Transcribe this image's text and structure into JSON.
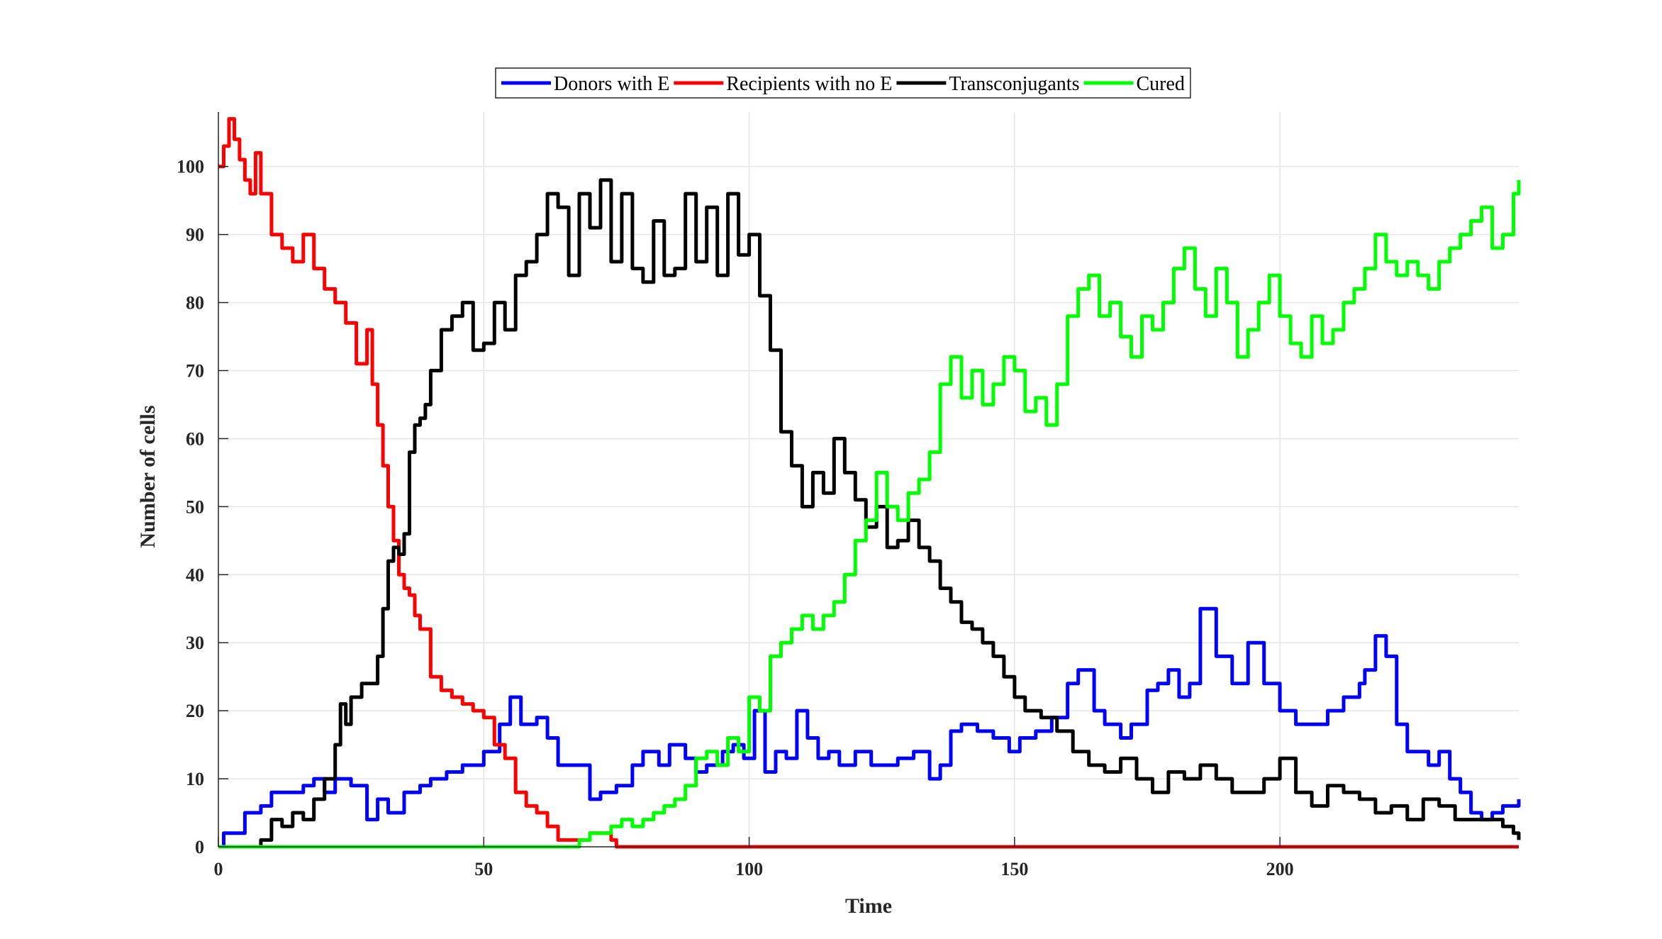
{
  "chart_data": {
    "type": "line",
    "title": "",
    "xlabel": "Time",
    "ylabel": "Number of cells",
    "xlim": [
      0,
      245
    ],
    "ylim": [
      0,
      108
    ],
    "xticks": [
      0,
      50,
      100,
      150,
      200
    ],
    "yticks": [
      0,
      10,
      20,
      30,
      40,
      50,
      60,
      70,
      80,
      90,
      100
    ],
    "grid": true,
    "legend": "top-center, horizontal",
    "series": [
      {
        "name": "Donors with E",
        "color": "#0000ff",
        "x": [
          0,
          1,
          2,
          5,
          8,
          10,
          13,
          16,
          18,
          20,
          22,
          25,
          28,
          30,
          32,
          35,
          38,
          40,
          43,
          46,
          48,
          50,
          53,
          55,
          57,
          60,
          62,
          64,
          67,
          70,
          72,
          75,
          78,
          80,
          83,
          85,
          88,
          90,
          92,
          95,
          97,
          99,
          101,
          103,
          105,
          107,
          109,
          111,
          113,
          115,
          117,
          120,
          123,
          125,
          128,
          131,
          134,
          136,
          138,
          140,
          143,
          146,
          149,
          151,
          154,
          157,
          160,
          162,
          165,
          167,
          170,
          172,
          175,
          177,
          179,
          181,
          183,
          185,
          188,
          191,
          194,
          197,
          200,
          203,
          206,
          209,
          212,
          215,
          216,
          218,
          220,
          222,
          224,
          226,
          228,
          230,
          232,
          234,
          236,
          238,
          240,
          242,
          245
        ],
        "y": [
          0,
          2,
          2,
          5,
          6,
          8,
          8,
          9,
          10,
          8,
          10,
          9,
          4,
          7,
          5,
          8,
          9,
          10,
          11,
          12,
          12,
          14,
          18,
          22,
          18,
          19,
          16,
          12,
          12,
          7,
          8,
          9,
          12,
          14,
          12,
          15,
          13,
          11,
          12,
          14,
          15,
          13,
          20,
          11,
          14,
          13,
          20,
          16,
          13,
          14,
          12,
          14,
          12,
          12,
          13,
          14,
          10,
          12,
          17,
          18,
          17,
          16,
          14,
          16,
          17,
          19,
          24,
          26,
          20,
          18,
          16,
          18,
          23,
          24,
          26,
          22,
          24,
          35,
          28,
          24,
          30,
          24,
          20,
          18,
          18,
          20,
          22,
          24,
          26,
          31,
          28,
          18,
          14,
          14,
          12,
          14,
          10,
          8,
          5,
          4,
          5,
          6,
          7
        ]
      },
      {
        "name": "Recipients with no E",
        "color": "#ff0000",
        "x": [
          0,
          1,
          2,
          3,
          4,
          5,
          6,
          7,
          8,
          10,
          12,
          14,
          16,
          18,
          20,
          22,
          24,
          26,
          28,
          29,
          30,
          31,
          32,
          33,
          34,
          35,
          36,
          37,
          38,
          40,
          42,
          44,
          46,
          48,
          50,
          52,
          54,
          56,
          58,
          60,
          62,
          64,
          66,
          68,
          70,
          72,
          73,
          74,
          75,
          76,
          245
        ],
        "y": [
          100,
          103,
          107,
          104,
          101,
          98,
          96,
          102,
          96,
          90,
          88,
          86,
          90,
          85,
          82,
          80,
          77,
          71,
          76,
          68,
          62,
          56,
          50,
          45,
          40,
          38,
          37,
          34,
          32,
          25,
          23,
          22,
          21,
          20,
          19,
          15,
          13,
          8,
          6,
          5,
          3,
          1,
          1,
          1,
          2,
          2,
          2,
          1,
          0,
          0,
          0
        ]
      },
      {
        "name": "Transconjugants",
        "color": "#000000",
        "x": [
          6,
          8,
          10,
          12,
          14,
          16,
          18,
          20,
          22,
          23,
          24,
          25,
          27,
          29,
          30,
          31,
          32,
          33,
          34,
          35,
          36,
          37,
          38,
          39,
          40,
          42,
          44,
          46,
          48,
          50,
          52,
          54,
          56,
          58,
          60,
          62,
          64,
          66,
          68,
          70,
          72,
          74,
          76,
          78,
          80,
          82,
          84,
          86,
          88,
          90,
          92,
          94,
          96,
          98,
          100,
          102,
          104,
          106,
          108,
          110,
          112,
          114,
          116,
          118,
          120,
          122,
          124,
          126,
          128,
          130,
          132,
          134,
          136,
          138,
          140,
          142,
          144,
          146,
          148,
          150,
          152,
          155,
          158,
          161,
          164,
          167,
          170,
          173,
          176,
          179,
          182,
          185,
          188,
          191,
          194,
          197,
          200,
          203,
          206,
          209,
          212,
          215,
          218,
          221,
          224,
          227,
          230,
          233,
          236,
          239,
          242,
          244,
          245
        ],
        "y": [
          0,
          1,
          4,
          3,
          5,
          4,
          7,
          10,
          15,
          21,
          18,
          22,
          24,
          24,
          28,
          35,
          42,
          44,
          43,
          46,
          58,
          62,
          63,
          65,
          70,
          76,
          78,
          80,
          73,
          74,
          80,
          76,
          84,
          86,
          90,
          96,
          94,
          84,
          96,
          91,
          98,
          86,
          96,
          85,
          83,
          92,
          84,
          85,
          96,
          86,
          94,
          84,
          96,
          87,
          90,
          81,
          73,
          61,
          56,
          50,
          55,
          52,
          60,
          55,
          51,
          47,
          50,
          44,
          45,
          48,
          44,
          42,
          38,
          36,
          33,
          32,
          30,
          28,
          25,
          22,
          20,
          19,
          17,
          14,
          12,
          11,
          13,
          10,
          8,
          11,
          10,
          12,
          10,
          8,
          8,
          10,
          13,
          8,
          6,
          9,
          8,
          7,
          5,
          6,
          4,
          7,
          6,
          4,
          4,
          4,
          3,
          2,
          1
        ]
      },
      {
        "name": "Cured",
        "color": "#00ff00",
        "x": [
          0,
          66,
          68,
          70,
          72,
          74,
          76,
          78,
          80,
          82,
          84,
          86,
          88,
          90,
          92,
          94,
          96,
          98,
          100,
          102,
          104,
          106,
          108,
          110,
          112,
          114,
          116,
          118,
          120,
          122,
          124,
          126,
          128,
          130,
          132,
          134,
          136,
          138,
          140,
          142,
          144,
          146,
          148,
          150,
          152,
          154,
          156,
          158,
          160,
          162,
          164,
          166,
          168,
          170,
          172,
          174,
          176,
          178,
          180,
          182,
          184,
          186,
          188,
          190,
          192,
          194,
          196,
          198,
          200,
          202,
          204,
          206,
          208,
          210,
          212,
          214,
          216,
          218,
          220,
          222,
          224,
          226,
          228,
          230,
          232,
          234,
          236,
          238,
          240,
          242,
          244,
          245
        ],
        "y": [
          0,
          0,
          1,
          2,
          2,
          3,
          4,
          3,
          4,
          5,
          6,
          7,
          9,
          13,
          14,
          12,
          16,
          14,
          22,
          20,
          28,
          30,
          32,
          34,
          32,
          34,
          36,
          40,
          45,
          48,
          55,
          50,
          48,
          52,
          54,
          58,
          68,
          72,
          66,
          70,
          65,
          68,
          72,
          70,
          64,
          66,
          62,
          68,
          78,
          82,
          84,
          78,
          80,
          75,
          72,
          78,
          76,
          80,
          85,
          88,
          82,
          78,
          85,
          80,
          72,
          76,
          80,
          84,
          78,
          74,
          72,
          78,
          74,
          76,
          80,
          82,
          85,
          90,
          86,
          84,
          86,
          84,
          82,
          86,
          88,
          90,
          92,
          94,
          88,
          90,
          96,
          98
        ]
      }
    ]
  }
}
